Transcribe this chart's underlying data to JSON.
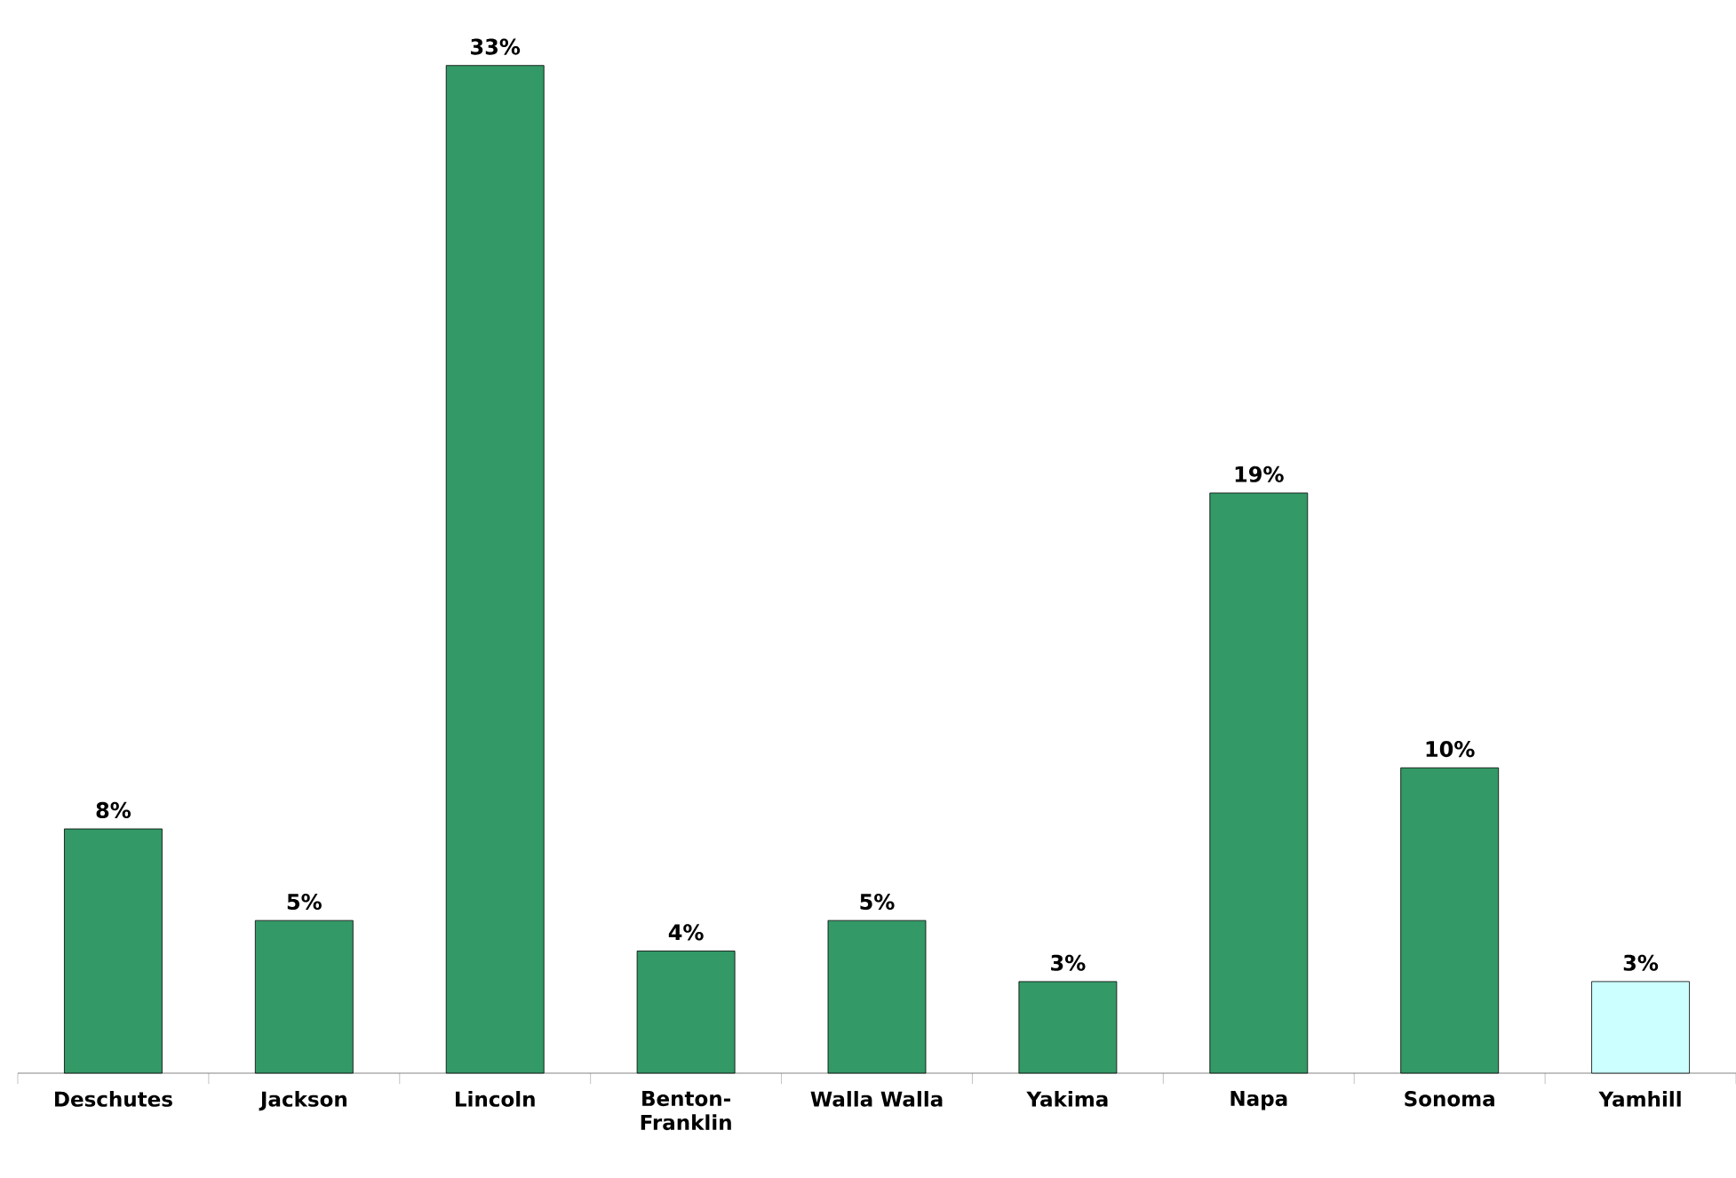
{
  "chart_data": {
    "type": "bar",
    "categories": [
      "Deschutes",
      "Jackson",
      "Lincoln",
      "Benton-Franklin",
      "Walla Walla",
      "Yakima",
      "Napa",
      "Sonoma",
      "Yamhill"
    ],
    "values": [
      8,
      5,
      33,
      4,
      5,
      3,
      19,
      10,
      3
    ],
    "value_labels": [
      "8%",
      "5%",
      "33%",
      "4%",
      "5%",
      "3%",
      "19%",
      "10%",
      "3%"
    ],
    "colors": [
      "#339966",
      "#339966",
      "#339966",
      "#339966",
      "#339966",
      "#339966",
      "#339966",
      "#339966",
      "#ccffff"
    ]
  }
}
